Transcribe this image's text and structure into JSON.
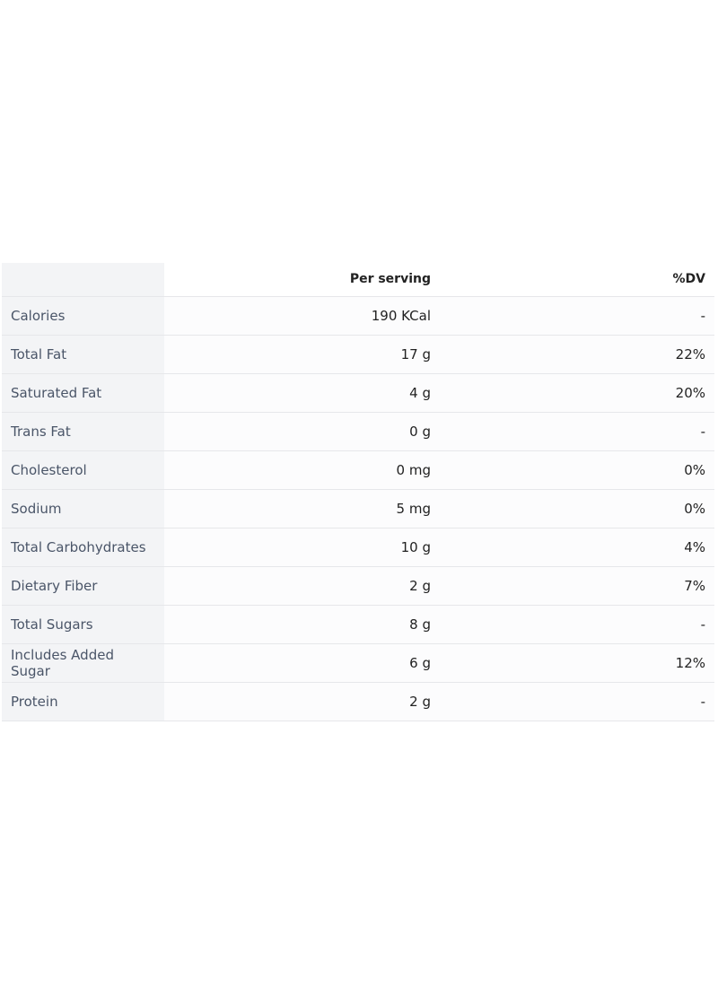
{
  "table": {
    "header": [
      "Per serving",
      "%DV"
    ],
    "rows": [
      [
        "Calories",
        "190 KCal",
        "-"
      ],
      [
        "Total Fat",
        "17 g",
        "22%"
      ],
      [
        "Saturated Fat",
        "4 g",
        "20%"
      ],
      [
        "Trans Fat",
        "0 g",
        "-"
      ],
      [
        "Cholesterol",
        "0 mg",
        "0%"
      ],
      [
        "Sodium",
        "5 mg",
        "0%"
      ],
      [
        "Total Carbohydrates",
        "10 g",
        "4%"
      ],
      [
        "Dietary Fiber",
        "2 g",
        "7%"
      ],
      [
        "Total Sugars",
        "8 g",
        "-"
      ],
      [
        "Includes Added Sugar",
        "6 g",
        "12%"
      ],
      [
        "Protein",
        "2 g",
        "-"
      ]
    ]
  }
}
